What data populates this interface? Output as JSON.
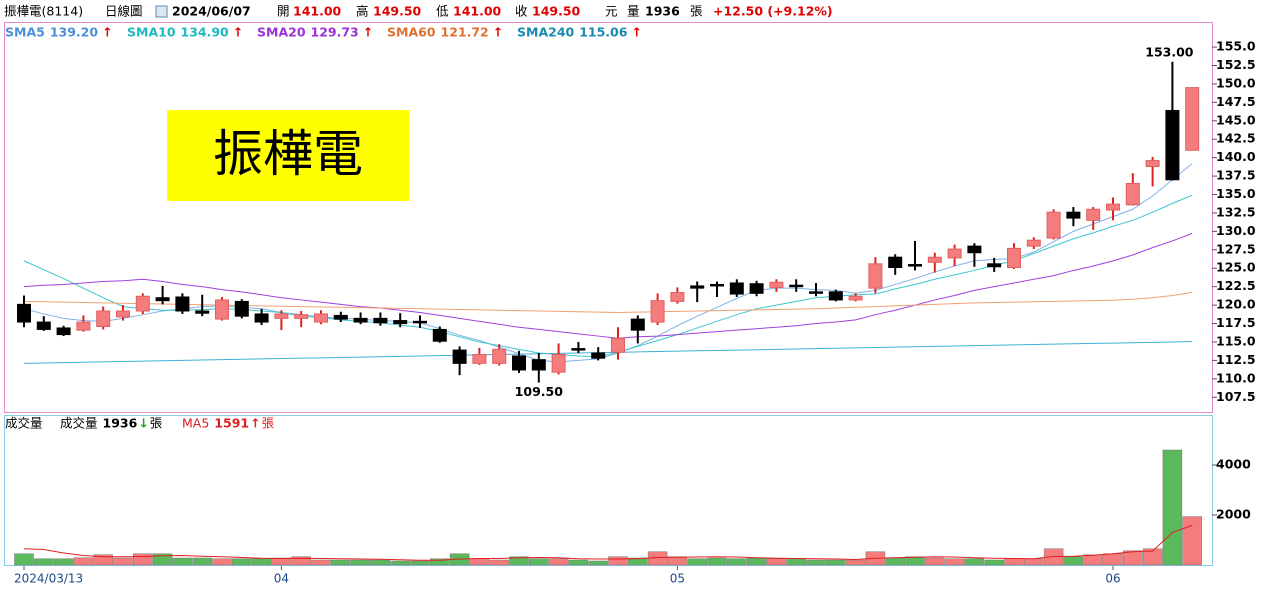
{
  "header": {
    "stock": "振樺電(8114)",
    "view": "日線圖",
    "date": "2024/06/07",
    "open_label": "開",
    "open": "141.00",
    "high_label": "高",
    "high": "149.50",
    "low_label": "低",
    "low": "141.00",
    "close_label": "收",
    "close": "149.50",
    "currency": "元",
    "volume_label": "量",
    "volume": "1936",
    "volume_unit": "張",
    "change": "+12.50 (+9.12%)"
  },
  "banner": "振樺電",
  "chart_data": [
    {
      "type": "candlestick",
      "open": [
        120.1,
        117.7,
        116.9,
        116.6,
        117.1,
        118.4,
        119.2,
        121.0,
        121.1,
        119.2,
        118.1,
        120.5,
        118.8,
        118.2,
        118.2,
        117.7,
        118.6,
        118.2,
        118.2,
        117.9,
        117.8,
        116.7,
        113.9,
        112.1,
        112.1,
        113.1,
        112.6,
        110.9,
        114.1,
        113.5,
        113.6,
        118.1,
        117.7,
        120.5,
        122.6,
        122.8,
        123.0,
        122.9,
        122.4,
        122.7,
        121.8,
        121.8,
        120.7,
        122.3,
        126.5,
        125.5,
        125.8,
        126.4,
        128.0,
        125.6,
        125.1,
        128.0,
        129.1,
        132.6,
        131.5,
        132.9,
        133.6,
        138.8,
        146.4,
        141.0
      ],
      "high": [
        121.3,
        118.5,
        117.2,
        118.6,
        119.8,
        120.0,
        121.6,
        122.6,
        121.6,
        121.4,
        121.1,
        120.8,
        119.5,
        119.3,
        119.2,
        119.3,
        119.1,
        119.0,
        119.0,
        118.9,
        118.6,
        117.1,
        114.4,
        114.2,
        114.7,
        113.8,
        113.5,
        114.8,
        115.0,
        114.3,
        117.0,
        118.6,
        121.6,
        122.4,
        123.2,
        123.2,
        123.5,
        123.3,
        123.5,
        123.5,
        123.0,
        122.1,
        121.6,
        126.5,
        126.9,
        128.7,
        127.1,
        128.2,
        128.4,
        126.4,
        128.4,
        129.2,
        133.0,
        133.3,
        133.3,
        134.6,
        137.9,
        140.1,
        153.0,
        149.5
      ],
      "low": [
        117.0,
        116.5,
        115.8,
        116.4,
        116.7,
        117.9,
        118.8,
        120.1,
        118.8,
        118.5,
        117.9,
        118.2,
        117.3,
        116.6,
        117.0,
        117.4,
        117.7,
        117.4,
        117.2,
        117.0,
        116.9,
        114.9,
        110.5,
        111.9,
        111.8,
        110.8,
        109.5,
        110.6,
        113.5,
        112.5,
        112.6,
        114.8,
        117.3,
        120.2,
        120.4,
        121.1,
        121.1,
        121.2,
        121.8,
        121.8,
        121.2,
        120.5,
        120.5,
        121.6,
        124.1,
        124.7,
        124.4,
        125.3,
        125.2,
        124.5,
        124.9,
        127.6,
        128.9,
        130.7,
        130.2,
        131.5,
        133.5,
        136.1,
        136.9,
        141.0
      ],
      "close": [
        117.7,
        116.7,
        116.0,
        117.7,
        119.2,
        119.2,
        121.2,
        120.6,
        119.2,
        118.9,
        120.7,
        118.5,
        117.7,
        118.8,
        118.7,
        118.8,
        118.1,
        117.7,
        117.6,
        117.5,
        117.6,
        115.1,
        112.1,
        113.3,
        114.0,
        111.2,
        111.2,
        113.3,
        113.9,
        112.8,
        115.5,
        116.6,
        120.6,
        121.7,
        122.3,
        122.6,
        121.5,
        121.6,
        123.1,
        122.5,
        121.6,
        120.7,
        121.2,
        125.6,
        125.1,
        125.3,
        126.5,
        127.6,
        127.1,
        125.2,
        127.7,
        128.8,
        132.6,
        131.8,
        133.0,
        133.7,
        136.5,
        139.6,
        137.0,
        149.5
      ],
      "high_labels": [
        null,
        null,
        null,
        null,
        null,
        null,
        null,
        null,
        null,
        null,
        null,
        null,
        null,
        null,
        null,
        null,
        null,
        null,
        null,
        null,
        null,
        null,
        null,
        null,
        null,
        null,
        null,
        null,
        null,
        null,
        null,
        null,
        null,
        null,
        null,
        null,
        null,
        null,
        null,
        null,
        null,
        null,
        null,
        null,
        null,
        null,
        null,
        null,
        null,
        null,
        null,
        null,
        null,
        null,
        null,
        null,
        null,
        null,
        "153.00",
        null
      ],
      "low_labels": [
        null,
        null,
        null,
        null,
        null,
        null,
        null,
        null,
        null,
        null,
        null,
        null,
        null,
        null,
        null,
        null,
        null,
        null,
        null,
        null,
        null,
        null,
        null,
        null,
        null,
        null,
        "109.50",
        null,
        null,
        null,
        null,
        null,
        null,
        null,
        null,
        null,
        null,
        null,
        null,
        null,
        null,
        null,
        null,
        null,
        null,
        null,
        null,
        null,
        null,
        null,
        null,
        null,
        null,
        null,
        null,
        null,
        null,
        null,
        null,
        null
      ],
      "up_color": "#f47c7c",
      "down_color": "#000000",
      "series": [
        {
          "name": "SMA5",
          "legend_value": "139.20",
          "arrow": "↑",
          "color": "#4a90d9",
          "line_color": "#7fb2e5",
          "values": [
            119.5,
            118.8,
            118.2,
            117.9,
            117.8,
            118.2,
            118.7,
            119.2,
            119.5,
            119.8,
            119.9,
            119.7,
            119.5,
            119.0,
            118.7,
            118.4,
            118.2,
            118.1,
            117.9,
            117.8,
            117.6,
            116.8,
            115.9,
            115.2,
            114.3,
            113.4,
            112.5,
            112.3,
            112.5,
            112.7,
            113.5,
            114.5,
            115.8,
            117.2,
            118.5,
            119.7,
            120.9,
            122.0,
            122.3,
            122.3,
            122.1,
            122.0,
            121.6,
            122.0,
            122.8,
            123.6,
            124.5,
            125.3,
            126.0,
            126.2,
            126.3,
            127.2,
            128.6,
            130.0,
            131.0,
            132.0,
            133.0,
            134.8,
            137.0,
            139.2
          ]
        },
        {
          "name": "SMA10",
          "legend_value": "134.90",
          "arrow": "↑",
          "color": "#20b8c0",
          "line_color": "#3cc8d0",
          "values": [
            126.0,
            124.8,
            123.6,
            122.3,
            121.0,
            119.8,
            119.5,
            119.3,
            119.3,
            119.4,
            119.5,
            119.4,
            119.2,
            119.0,
            118.5,
            118.3,
            118.0,
            117.8,
            117.6,
            117.3,
            117.0,
            116.4,
            115.7,
            115.0,
            114.5,
            114.0,
            113.5,
            113.3,
            113.1,
            113.0,
            113.6,
            114.4,
            115.2,
            116.0,
            116.9,
            117.8,
            118.7,
            119.5,
            120.0,
            120.5,
            121.0,
            121.2,
            121.4,
            121.5,
            122.2,
            122.8,
            123.5,
            124.1,
            124.7,
            125.4,
            126.0,
            127.0,
            128.0,
            129.0,
            129.8,
            130.7,
            131.5,
            132.6,
            133.8,
            134.9
          ]
        },
        {
          "name": "SMA20",
          "legend_value": "129.73",
          "arrow": "↑",
          "color": "#9b30d9",
          "line_color": "#a040e0",
          "values": [
            122.5,
            122.7,
            122.8,
            123.0,
            123.2,
            123.3,
            123.5,
            123.2,
            122.8,
            122.5,
            122.1,
            121.8,
            121.4,
            121.0,
            120.7,
            120.4,
            120.1,
            119.8,
            119.6,
            119.3,
            119.0,
            118.6,
            118.2,
            117.8,
            117.4,
            117.0,
            116.7,
            116.4,
            116.1,
            115.8,
            115.5,
            115.7,
            115.8,
            116.0,
            116.2,
            116.4,
            116.6,
            116.8,
            117.0,
            117.2,
            117.5,
            117.7,
            118.0,
            118.7,
            119.3,
            120.0,
            120.7,
            121.3,
            122.0,
            122.5,
            123.0,
            123.5,
            124.0,
            124.7,
            125.3,
            126.0,
            126.8,
            127.8,
            128.7,
            129.73
          ]
        },
        {
          "name": "SMA60",
          "legend_value": "121.72",
          "arrow": "↑",
          "color": "#e07030",
          "line_color": "#f0a070",
          "values": [
            120.5,
            120.45,
            120.4,
            120.35,
            120.3,
            120.25,
            120.2,
            120.15,
            120.1,
            120.05,
            120.0,
            119.95,
            119.9,
            119.85,
            119.8,
            119.75,
            119.7,
            119.65,
            119.6,
            119.55,
            119.5,
            119.45,
            119.4,
            119.35,
            119.3,
            119.25,
            119.2,
            119.15,
            119.1,
            119.05,
            119.0,
            119.05,
            119.1,
            119.15,
            119.2,
            119.25,
            119.3,
            119.35,
            119.4,
            119.45,
            119.5,
            119.6,
            119.7,
            119.8,
            119.9,
            120.0,
            120.1,
            120.2,
            120.3,
            120.35,
            120.4,
            120.45,
            120.5,
            120.55,
            120.6,
            120.65,
            120.8,
            121.0,
            121.3,
            121.72
          ]
        },
        {
          "name": "SMA240",
          "legend_value": "115.06",
          "arrow": "↑",
          "color": "#1a8ab0",
          "line_color": "#40b0d8",
          "values": [
            112.1,
            112.15,
            112.2,
            112.25,
            112.3,
            112.35,
            112.4,
            112.45,
            112.5,
            112.55,
            112.6,
            112.65,
            112.7,
            112.75,
            112.8,
            112.85,
            112.9,
            112.95,
            113.0,
            113.05,
            113.1,
            113.15,
            113.2,
            113.25,
            113.3,
            113.35,
            113.4,
            113.45,
            113.5,
            113.55,
            113.6,
            113.65,
            113.7,
            113.75,
            113.8,
            113.85,
            113.9,
            113.95,
            114.0,
            114.05,
            114.1,
            114.15,
            114.2,
            114.25,
            114.3,
            114.35,
            114.4,
            114.45,
            114.5,
            114.55,
            114.6,
            114.65,
            114.7,
            114.75,
            114.8,
            114.85,
            114.9,
            114.95,
            115.0,
            115.06
          ]
        }
      ],
      "ylim": [
        105.5,
        158.4
      ],
      "yticks": [
        107.5,
        {
          "value": 110,
          "label": "110.0"
        },
        112.5,
        {
          "value": 115,
          "label": "115.0"
        },
        117.5,
        {
          "value": 120,
          "label": "120.0"
        },
        122.5,
        {
          "value": 125,
          "label": "125.0"
        },
        127.5,
        {
          "value": 130,
          "label": "130.0"
        },
        132.5,
        {
          "value": 135,
          "label": "135.0"
        },
        137.5,
        {
          "value": 140,
          "label": "140.0"
        },
        142.5,
        {
          "value": 145,
          "label": "145.0"
        },
        147.5,
        {
          "value": 150,
          "label": "150.0"
        },
        152.5,
        {
          "value": 155,
          "label": "155.0"
        }
      ]
    },
    {
      "type": "bar",
      "title": "成交量",
      "legend": {
        "name": "成交量",
        "value": "1936",
        "arrow": "↓",
        "unit": "張"
      },
      "categories": [
        "2024/03/13",
        null,
        null,
        null,
        null,
        null,
        null,
        null,
        null,
        null,
        null,
        null,
        null,
        "04",
        null,
        null,
        null,
        null,
        null,
        null,
        null,
        null,
        null,
        null,
        null,
        null,
        null,
        null,
        null,
        null,
        null,
        null,
        null,
        "05",
        null,
        null,
        null,
        null,
        null,
        null,
        null,
        null,
        null,
        null,
        null,
        null,
        null,
        null,
        null,
        null,
        null,
        null,
        null,
        null,
        null,
        "06",
        null,
        null,
        null,
        null
      ],
      "values": [
        450,
        250,
        250,
        290,
        410,
        280,
        450,
        450,
        280,
        280,
        250,
        250,
        250,
        280,
        330,
        200,
        200,
        200,
        200,
        160,
        160,
        250,
        450,
        250,
        200,
        330,
        250,
        250,
        200,
        160,
        330,
        280,
        530,
        330,
        250,
        280,
        250,
        280,
        250,
        250,
        200,
        200,
        200,
        530,
        280,
        330,
        280,
        250,
        250,
        200,
        250,
        250,
        650,
        330,
        410,
        450,
        570,
        650,
        4600,
        1936
      ],
      "up_color": "#f47c7c",
      "down_color": "#5cb85c",
      "series": [
        {
          "name": "MA5",
          "legend_value": "1591",
          "arrow": "↑",
          "unit": "張",
          "color": "#e02020",
          "values": [
            650,
            620,
            480,
            380,
            330,
            330,
            340,
            370,
            380,
            350,
            330,
            300,
            270,
            260,
            270,
            260,
            250,
            240,
            230,
            210,
            190,
            190,
            240,
            260,
            260,
            290,
            300,
            290,
            250,
            240,
            240,
            250,
            300,
            310,
            320,
            330,
            320,
            290,
            270,
            260,
            250,
            240,
            220,
            270,
            290,
            310,
            330,
            320,
            290,
            270,
            260,
            250,
            340,
            350,
            390,
            450,
            530,
            560,
            1300,
            1591
          ]
        }
      ],
      "ylim": [
        0,
        6000
      ],
      "yticks": [
        2000,
        4000
      ]
    }
  ]
}
